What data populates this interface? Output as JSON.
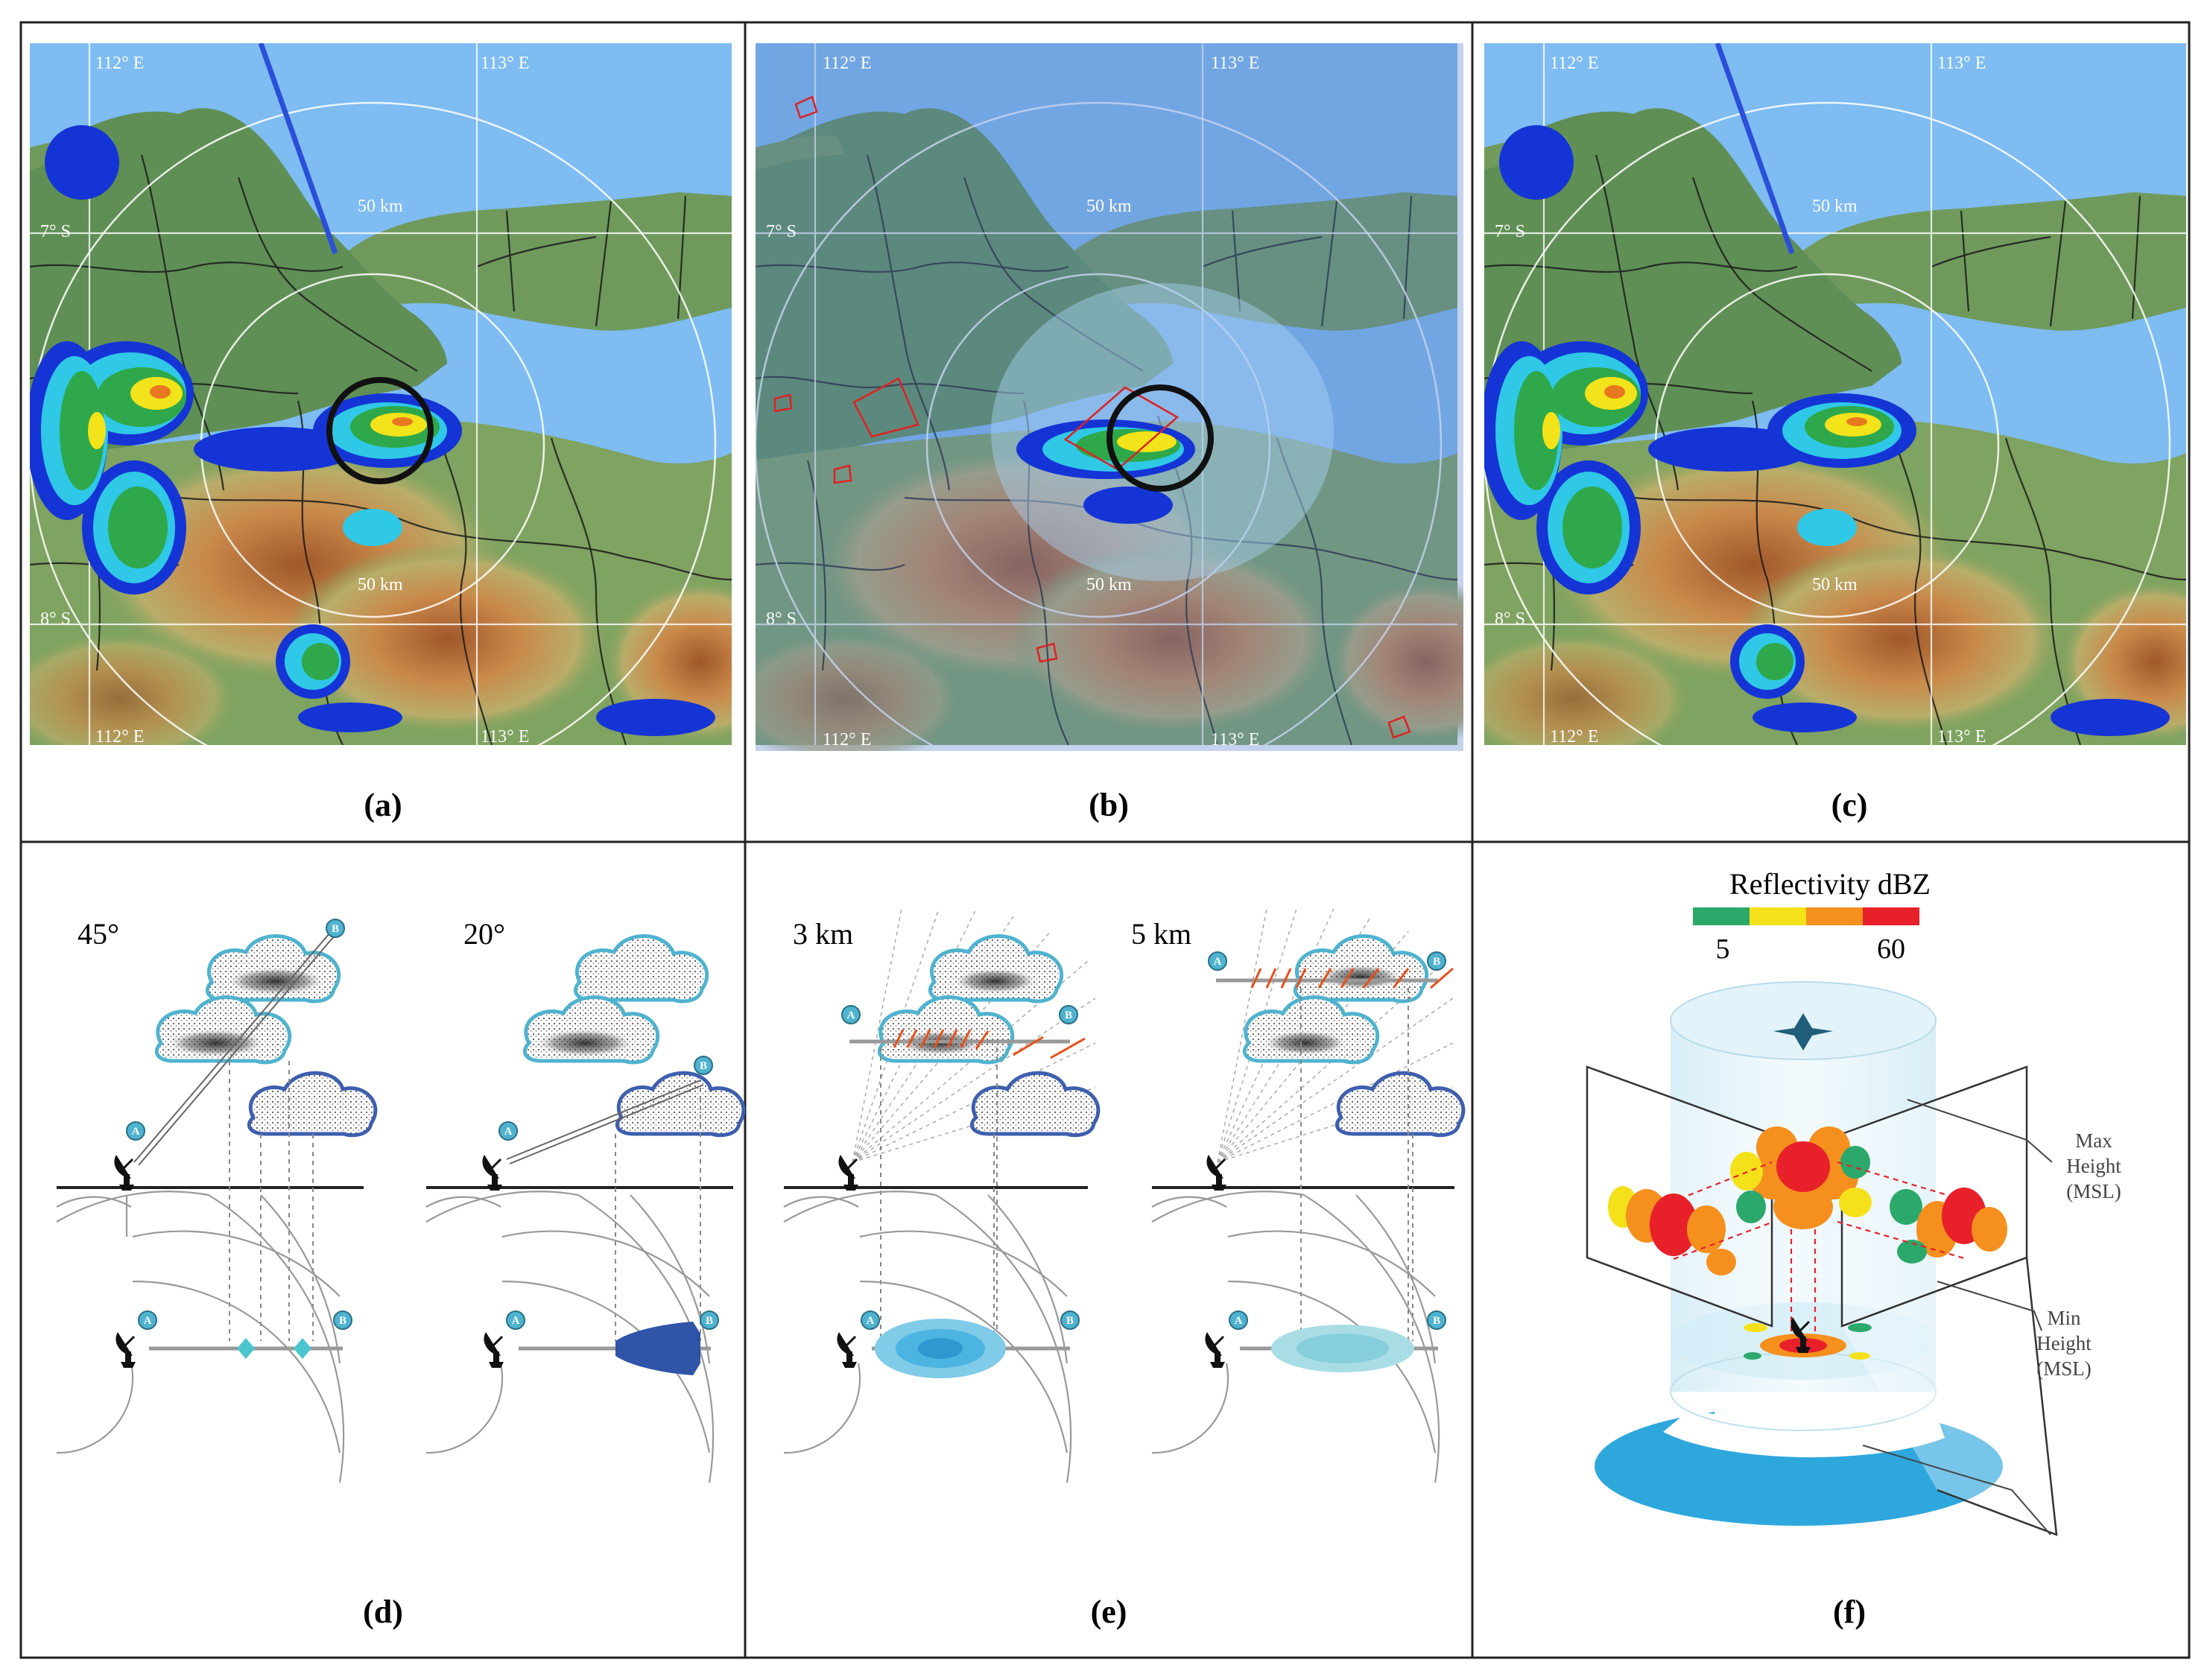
{
  "panels": {
    "a": {
      "caption": "(a)"
    },
    "b": {
      "caption": "(b)"
    },
    "c": {
      "caption": "(c)"
    },
    "d": {
      "caption": "(d)",
      "angle_left": "45°",
      "angle_right": "20°"
    },
    "e": {
      "caption": "(e)",
      "height_left": "3 km",
      "height_right": "5 km"
    },
    "f": {
      "caption": "(f)"
    }
  },
  "map": {
    "lon_left": "112° E",
    "lon_right": "113° E",
    "lat_top": "7° S",
    "lat_bottom": "8° S",
    "range_label": "50 km"
  },
  "markers": {
    "a": "A",
    "b": "B"
  },
  "legend": {
    "title": "Reflectivity dBZ",
    "min": "5",
    "max": "60",
    "colors": [
      "#2aa96b",
      "#f5e11a",
      "#f5901e",
      "#e8202a"
    ]
  },
  "annotations": {
    "max_height": [
      "Max",
      "Height",
      "(MSL)"
    ],
    "min_height": [
      "Min",
      "Height",
      "(MSL)"
    ]
  },
  "colors": {
    "sea": "#7ebcf2",
    "land_green": "#5f8f55",
    "cloud_outline": "#4fb3cf",
    "cloud_dark_outline": "#3e5fae",
    "radar_blue": "#2f54a8",
    "cyan_echo": "#4bc6cf",
    "cylinder": "#cfe9f4",
    "base": "#2ea7dc"
  }
}
